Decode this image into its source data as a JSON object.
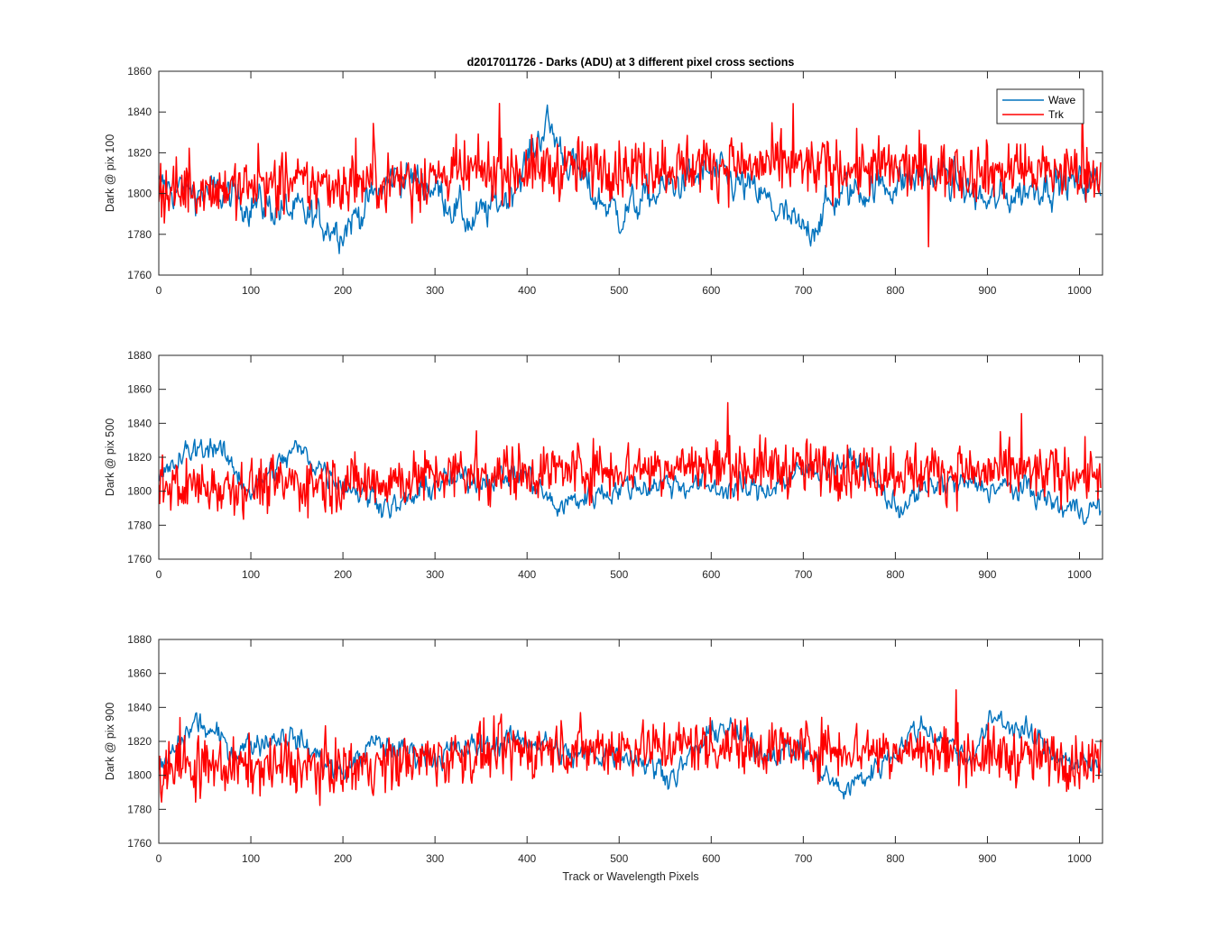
{
  "figure": {
    "title": "d2017011726 - Darks (ADU) at 3 different pixel cross sections",
    "xlabel": "Track or Wavelength Pixels"
  },
  "colors": {
    "wave": "#0072BD",
    "trk": "#FF0000",
    "axis": "#262626"
  },
  "chart_data": [
    {
      "type": "line",
      "ylabel": "Dark @ pix 100",
      "xlim": [
        0,
        1025
      ],
      "ylim": [
        1760,
        1860
      ],
      "xticks": [
        0,
        100,
        200,
        300,
        400,
        500,
        600,
        700,
        800,
        900,
        1000
      ],
      "yticks": [
        1760,
        1780,
        1800,
        1820,
        1840,
        1860
      ],
      "legend": {
        "show": true,
        "position": "top-right"
      },
      "series": [
        {
          "name": "Wave",
          "color": "#0072BD",
          "n": 1024,
          "baseline": 1802,
          "noise": 6,
          "smooth": 0.6,
          "trend": [
            [
              0,
              1803
            ],
            [
              60,
              1800
            ],
            [
              150,
              1790
            ],
            [
              200,
              1783
            ],
            [
              260,
              1810
            ],
            [
              300,
              1803
            ],
            [
              340,
              1785
            ],
            [
              380,
              1800
            ],
            [
              400,
              1815
            ],
            [
              420,
              1835
            ],
            [
              440,
              1820
            ],
            [
              470,
              1800
            ],
            [
              500,
              1790
            ],
            [
              560,
              1805
            ],
            [
              600,
              1810
            ],
            [
              650,
              1800
            ],
            [
              700,
              1780
            ],
            [
              740,
              1800
            ],
            [
              800,
              1805
            ],
            [
              850,
              1810
            ],
            [
              900,
              1795
            ],
            [
              960,
              1805
            ],
            [
              1024,
              1805
            ]
          ]
        },
        {
          "name": "Trk",
          "color": "#FF0000",
          "n": 1024,
          "baseline": 1807,
          "noise": 8,
          "smooth": 0.1,
          "trend": [
            [
              0,
              1802
            ],
            [
              200,
              1805
            ],
            [
              400,
              1812
            ],
            [
              600,
              1814
            ],
            [
              800,
              1812
            ],
            [
              1024,
              1810
            ]
          ]
        }
      ]
    },
    {
      "type": "line",
      "ylabel": "Dark @ pix 500",
      "xlim": [
        0,
        1025
      ],
      "ylim": [
        1760,
        1880
      ],
      "xticks": [
        0,
        100,
        200,
        300,
        400,
        500,
        600,
        700,
        800,
        900,
        1000
      ],
      "yticks": [
        1760,
        1780,
        1800,
        1820,
        1840,
        1860,
        1880
      ],
      "legend": {
        "show": false
      },
      "series": [
        {
          "name": "Wave",
          "color": "#0072BD",
          "n": 1024,
          "baseline": 1805,
          "noise": 5,
          "smooth": 0.6,
          "trend": [
            [
              0,
              1805
            ],
            [
              30,
              1822
            ],
            [
              60,
              1828
            ],
            [
              100,
              1800
            ],
            [
              150,
              1825
            ],
            [
              200,
              1805
            ],
            [
              260,
              1790
            ],
            [
              300,
              1805
            ],
            [
              400,
              1810
            ],
            [
              430,
              1790
            ],
            [
              480,
              1800
            ],
            [
              550,
              1805
            ],
            [
              650,
              1800
            ],
            [
              720,
              1815
            ],
            [
              760,
              1818
            ],
            [
              800,
              1790
            ],
            [
              850,
              1805
            ],
            [
              950,
              1800
            ],
            [
              980,
              1790
            ],
            [
              1024,
              1790
            ]
          ]
        },
        {
          "name": "Trk",
          "color": "#FF0000",
          "n": 1024,
          "baseline": 1808,
          "noise": 9,
          "smooth": 0.1,
          "trend": [
            [
              0,
              1803
            ],
            [
              200,
              1805
            ],
            [
              400,
              1812
            ],
            [
              600,
              1815
            ],
            [
              800,
              1812
            ],
            [
              1024,
              1810
            ]
          ]
        }
      ]
    },
    {
      "type": "line",
      "ylabel": "Dark @ pix 900",
      "xlim": [
        0,
        1025
      ],
      "ylim": [
        1760,
        1880
      ],
      "xticks": [
        0,
        100,
        200,
        300,
        400,
        500,
        600,
        700,
        800,
        900,
        1000
      ],
      "yticks": [
        1760,
        1780,
        1800,
        1820,
        1840,
        1860,
        1880
      ],
      "legend": {
        "show": false
      },
      "series": [
        {
          "name": "Wave",
          "color": "#0072BD",
          "n": 1024,
          "baseline": 1810,
          "noise": 5,
          "smooth": 0.6,
          "trend": [
            [
              0,
              1800
            ],
            [
              40,
              1832
            ],
            [
              80,
              1815
            ],
            [
              140,
              1825
            ],
            [
              200,
              1800
            ],
            [
              230,
              1818
            ],
            [
              300,
              1812
            ],
            [
              400,
              1822
            ],
            [
              450,
              1810
            ],
            [
              500,
              1815
            ],
            [
              560,
              1800
            ],
            [
              610,
              1830
            ],
            [
              650,
              1815
            ],
            [
              700,
              1815
            ],
            [
              740,
              1790
            ],
            [
              770,
              1800
            ],
            [
              800,
              1815
            ],
            [
              830,
              1830
            ],
            [
              880,
              1810
            ],
            [
              910,
              1835
            ],
            [
              940,
              1825
            ],
            [
              1000,
              1805
            ],
            [
              1024,
              1805
            ]
          ]
        },
        {
          "name": "Trk",
          "color": "#FF0000",
          "n": 1024,
          "baseline": 1810,
          "noise": 9,
          "smooth": 0.1,
          "trend": [
            [
              0,
              1805
            ],
            [
              200,
              1805
            ],
            [
              400,
              1815
            ],
            [
              600,
              1818
            ],
            [
              800,
              1815
            ],
            [
              1024,
              1808
            ]
          ]
        }
      ]
    }
  ]
}
